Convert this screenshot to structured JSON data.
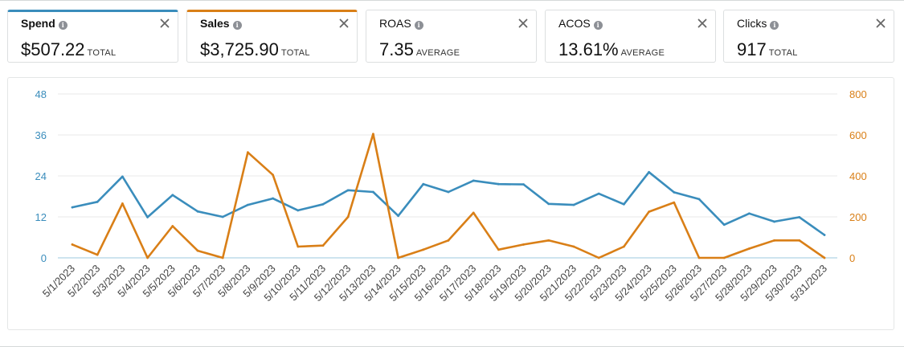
{
  "metrics": [
    {
      "label": "Spend",
      "value": "$507.22",
      "unit": "TOTAL",
      "selected": true,
      "accent": "#3a8dbc"
    },
    {
      "label": "Sales",
      "value": "$3,725.90",
      "unit": "TOTAL",
      "selected": true,
      "accent": "#d97f17"
    },
    {
      "label": "ROAS",
      "value": "7.35",
      "unit": "AVERAGE",
      "selected": false
    },
    {
      "label": "ACOS",
      "value": "13.61%",
      "unit": "AVERAGE",
      "selected": false
    },
    {
      "label": "Clicks",
      "value": "917",
      "unit": "TOTAL",
      "selected": false
    }
  ],
  "icons": {
    "info": "info-icon",
    "close": "close-icon"
  },
  "colors": {
    "spend": "#3a8dbc",
    "sales": "#d97f17",
    "grid": "#e8eaea",
    "axis_line": "#9ec9df"
  },
  "chart_data": {
    "type": "line",
    "grid": true,
    "legend": "none",
    "categories": [
      "5/1/2023",
      "5/2/2023",
      "5/3/2023",
      "5/4/2023",
      "5/5/2023",
      "5/6/2023",
      "5/7/2023",
      "5/8/2023",
      "5/9/2023",
      "5/10/2023",
      "5/11/2023",
      "5/12/2023",
      "5/13/2023",
      "5/14/2023",
      "5/15/2023",
      "5/16/2023",
      "5/17/2023",
      "5/18/2023",
      "5/19/2023",
      "5/20/2023",
      "5/21/2023",
      "5/22/2023",
      "5/23/2023",
      "5/24/2023",
      "5/25/2023",
      "5/26/2023",
      "5/27/2023",
      "5/28/2023",
      "5/29/2023",
      "5/30/2023",
      "5/31/2023"
    ],
    "y_left": {
      "ticks": [
        "0",
        "12",
        "24",
        "36",
        "48"
      ],
      "range": [
        0,
        48
      ]
    },
    "y_right": {
      "ticks": [
        "0",
        "200",
        "400",
        "600",
        "800"
      ],
      "range": [
        0,
        800
      ]
    },
    "series": [
      {
        "name": "Spend",
        "axis": "left",
        "color": "#3a8dbc",
        "values": [
          14.8,
          16.4,
          23.8,
          11.9,
          18.4,
          13.6,
          12.0,
          15.5,
          17.4,
          13.9,
          15.7,
          19.8,
          19.3,
          12.3,
          21.6,
          19.3,
          22.6,
          21.6,
          21.5,
          15.8,
          15.5,
          18.8,
          15.7,
          25.1,
          19.2,
          17.2,
          9.7,
          13.0,
          10.6,
          11.9,
          6.7
        ]
      },
      {
        "name": "Sales",
        "axis": "right",
        "color": "#d97f17",
        "values": [
          65,
          15,
          265,
          0,
          155,
          35,
          0,
          515,
          405,
          55,
          60,
          200,
          605,
          0,
          40,
          85,
          220,
          40,
          65,
          85,
          55,
          0,
          55,
          225,
          270,
          0,
          0,
          45,
          85,
          85,
          0
        ]
      }
    ]
  }
}
